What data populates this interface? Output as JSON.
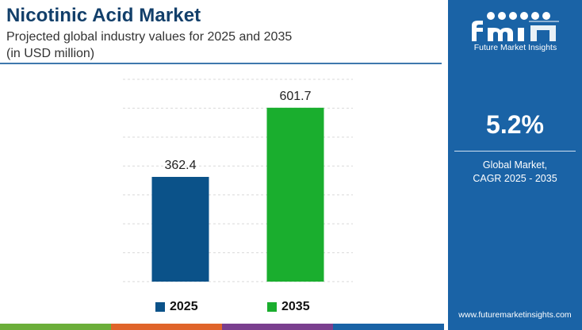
{
  "header": {
    "title": "Nicotinic Acid Market",
    "subtitle": "Projected global industry values for 2025 and 2035",
    "unit_note": "(in USD million)"
  },
  "chart_data": {
    "type": "bar",
    "categories": [
      "2025",
      "2035"
    ],
    "values": [
      362.4,
      601.7
    ],
    "value_labels": [
      "362.4",
      "601.7"
    ],
    "colors": [
      "#0b5289",
      "#1aae2e"
    ],
    "ylim": [
      0,
      700
    ],
    "grid": true,
    "legend": [
      {
        "label": "2025",
        "color": "#0b5289"
      },
      {
        "label": "2035",
        "color": "#1aae2e"
      }
    ],
    "legend_position": "bottom"
  },
  "sidebar": {
    "brand": "fmi",
    "brand_tagline": "Future Market Insights",
    "cagr_value": "5.2%",
    "cagr_label_line1": "Global Market,",
    "cagr_label_line2": "CAGR 2025 - 2035",
    "website": "www.futuremarketinsights.com"
  },
  "colors": {
    "title": "#123f6a",
    "panel": "#1a63a6",
    "strip": [
      "#6bae3a",
      "#e0642a",
      "#7a3f8e",
      "#1a63a6"
    ]
  }
}
